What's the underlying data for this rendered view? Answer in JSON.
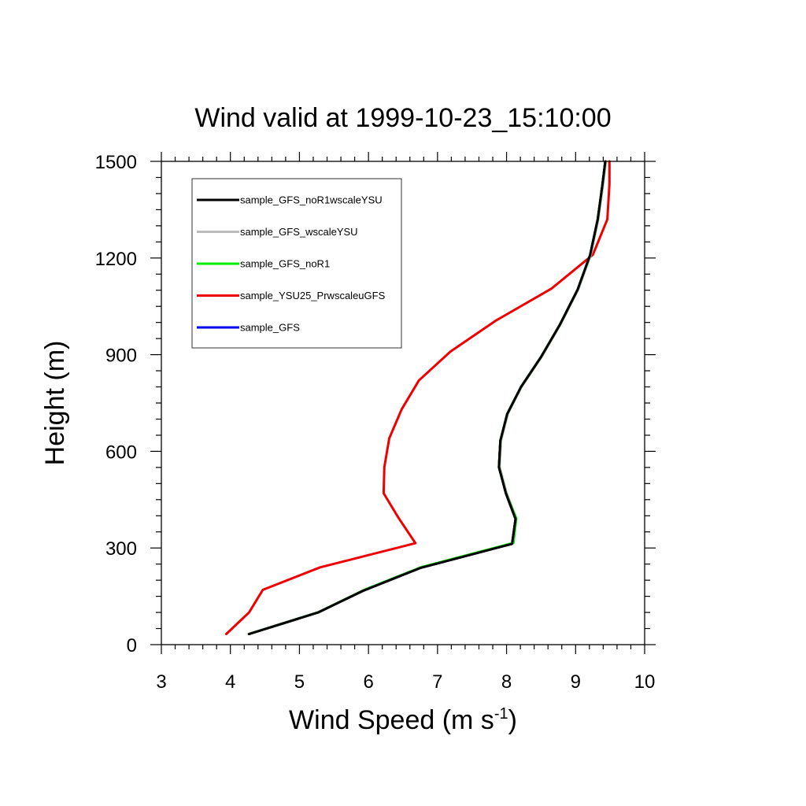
{
  "chart_data": {
    "type": "line",
    "title": "Wind valid at 1999-10-23_15:10:00",
    "xlabel": "Wind Speed (m s",
    "xlabel_superscript": "-1",
    "xlabel_close": ")",
    "ylabel": "Height (m)",
    "xlim": [
      3,
      10
    ],
    "ylim": [
      0,
      1500
    ],
    "xticks": [
      "3",
      "4",
      "5",
      "6",
      "7",
      "8",
      "9",
      "10"
    ],
    "yticks": [
      "0",
      "300",
      "600",
      "900",
      "1200",
      "1500"
    ],
    "grid": false,
    "legend_position": "top-left",
    "series": [
      {
        "name": "sample_GFS_noR1wscaleYSU",
        "color": "#000000",
        "points": [
          [
            4.27,
            33
          ],
          [
            5.27,
            100
          ],
          [
            5.92,
            167
          ],
          [
            6.75,
            238
          ],
          [
            8.08,
            313
          ],
          [
            8.13,
            390
          ],
          [
            7.99,
            470
          ],
          [
            7.89,
            551
          ],
          [
            7.91,
            633
          ],
          [
            8.01,
            716
          ],
          [
            8.21,
            800
          ],
          [
            8.5,
            893
          ],
          [
            8.77,
            992
          ],
          [
            9.03,
            1102
          ],
          [
            9.21,
            1209
          ],
          [
            9.32,
            1320
          ],
          [
            9.39,
            1430
          ],
          [
            9.43,
            1500
          ]
        ]
      },
      {
        "name": "sample_GFS_wscaleYSU",
        "color": "#bbbbbb",
        "points": [
          [
            4.26,
            33
          ],
          [
            5.27,
            100
          ],
          [
            5.92,
            168
          ],
          [
            6.76,
            239
          ],
          [
            8.09,
            314
          ],
          [
            8.14,
            391
          ],
          [
            8.0,
            471
          ],
          [
            7.9,
            552
          ],
          [
            7.92,
            634
          ],
          [
            8.02,
            717
          ],
          [
            8.22,
            801
          ],
          [
            8.51,
            894
          ],
          [
            8.78,
            993
          ],
          [
            9.04,
            1103
          ],
          [
            9.22,
            1210
          ],
          [
            9.33,
            1321
          ],
          [
            9.4,
            1431
          ],
          [
            9.44,
            1500
          ]
        ]
      },
      {
        "name": "sample_GFS_noR1",
        "color": "#00ee00",
        "points": [
          [
            4.27,
            33
          ],
          [
            5.28,
            101
          ],
          [
            5.93,
            169
          ],
          [
            6.77,
            241
          ],
          [
            8.1,
            316
          ],
          [
            8.14,
            392
          ],
          [
            7.99,
            471
          ],
          [
            7.89,
            551
          ],
          [
            7.91,
            633
          ],
          [
            8.01,
            716
          ],
          [
            8.21,
            800
          ],
          [
            8.5,
            893
          ],
          [
            8.77,
            992
          ],
          [
            9.03,
            1102
          ],
          [
            9.21,
            1209
          ],
          [
            9.32,
            1320
          ],
          [
            9.39,
            1430
          ],
          [
            9.43,
            1500
          ]
        ]
      },
      {
        "name": "sample_YSU25_PrwscaleuGFS",
        "color": "#ee0000",
        "points": [
          [
            3.94,
            33
          ],
          [
            4.27,
            100
          ],
          [
            4.47,
            170
          ],
          [
            5.3,
            240
          ],
          [
            6.68,
            315
          ],
          [
            6.43,
            395
          ],
          [
            6.22,
            470
          ],
          [
            6.23,
            551
          ],
          [
            6.3,
            640
          ],
          [
            6.48,
            730
          ],
          [
            6.73,
            820
          ],
          [
            7.19,
            910
          ],
          [
            7.84,
            1005
          ],
          [
            8.65,
            1105
          ],
          [
            9.25,
            1210
          ],
          [
            9.46,
            1320
          ],
          [
            9.49,
            1430
          ],
          [
            9.49,
            1500
          ]
        ]
      },
      {
        "name": "sample_GFS",
        "color": "#0000ee",
        "points": [
          [
            4.27,
            33
          ],
          [
            5.27,
            100
          ],
          [
            5.92,
            167
          ],
          [
            6.75,
            238
          ],
          [
            8.08,
            313
          ],
          [
            8.13,
            390
          ],
          [
            7.99,
            470
          ],
          [
            7.89,
            551
          ],
          [
            7.91,
            633
          ],
          [
            8.01,
            716
          ],
          [
            8.21,
            800
          ],
          [
            8.5,
            893
          ],
          [
            8.77,
            992
          ],
          [
            9.03,
            1102
          ],
          [
            9.21,
            1209
          ],
          [
            9.32,
            1320
          ],
          [
            9.39,
            1430
          ],
          [
            9.43,
            1500
          ]
        ]
      }
    ],
    "draw_order": [
      3,
      4,
      0,
      1,
      2,
      0
    ]
  }
}
